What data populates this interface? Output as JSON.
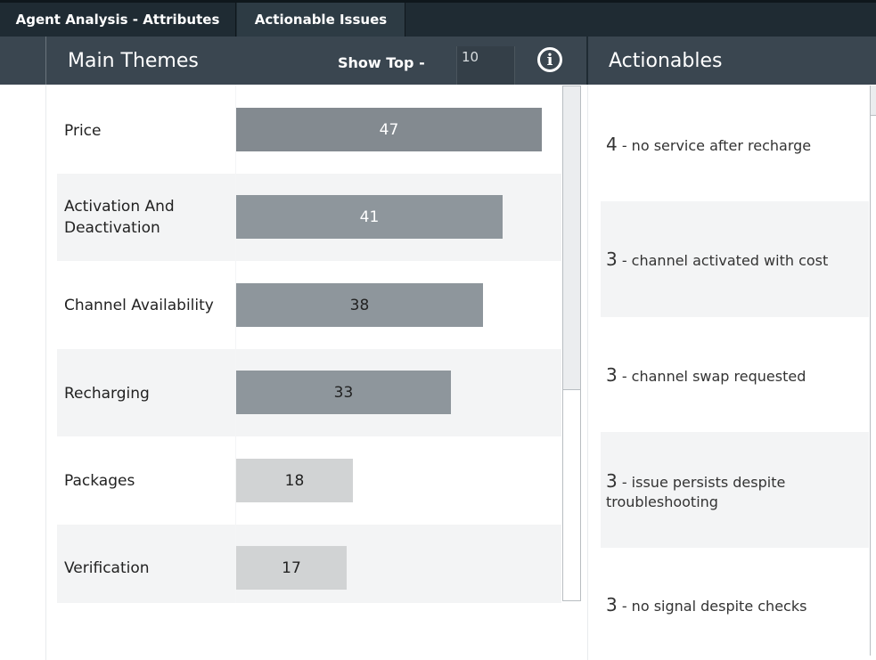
{
  "tabs": [
    {
      "label": "Agent Analysis - Attributes",
      "active": false
    },
    {
      "label": "Actionable Issues",
      "active": true
    }
  ],
  "main_themes": {
    "title": "Main Themes",
    "show_top_label": "Show Top -",
    "show_top_value": "10",
    "info_icon": "info-circle-icon",
    "rows": [
      {
        "label": "Price",
        "value": "47"
      },
      {
        "label": "Activation And Deactivation",
        "value": "41"
      },
      {
        "label": "Channel Availability",
        "value": "38"
      },
      {
        "label": "Recharging",
        "value": "33"
      },
      {
        "label": "Packages",
        "value": "18"
      },
      {
        "label": "Verification",
        "value": "17"
      }
    ]
  },
  "actionables": {
    "title": "Actionables",
    "items": [
      {
        "count": "4",
        "text": " - no service after recharge"
      },
      {
        "count": "3",
        "text": " - channel activated with cost"
      },
      {
        "count": "3",
        "text": " - channel swap requested"
      },
      {
        "count": "3",
        "text": " - issue persists despite troubleshooting"
      },
      {
        "count": "3",
        "text": " - no signal despite checks"
      }
    ]
  },
  "colors": {
    "header_bg": "#3a4650",
    "tab_bg": "#1f2b33",
    "bar_dark": "#838a90",
    "bar_mid": "#8e969c",
    "bar_light": "#d1d3d4",
    "row_alt": "#f3f4f5"
  }
}
